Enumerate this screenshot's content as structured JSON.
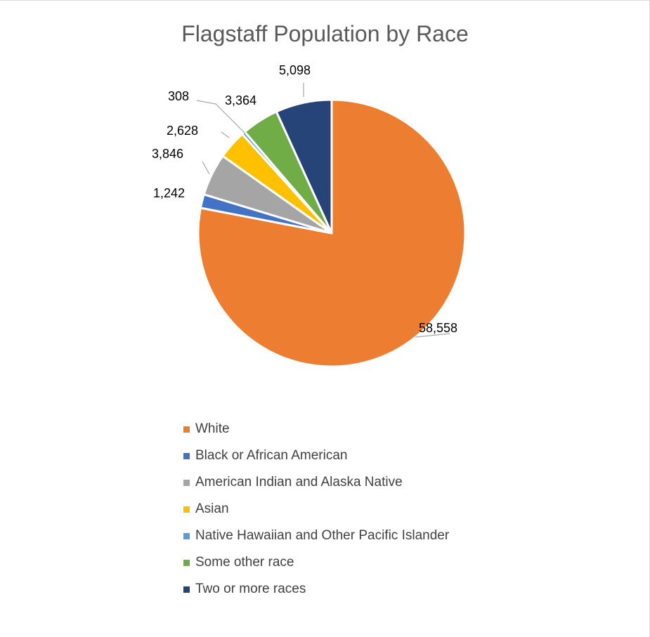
{
  "chart_data": {
    "type": "pie",
    "title": "Flagstaff Population by Race",
    "slices": [
      {
        "label": "White",
        "value": 58558,
        "value_label": "58,558",
        "color": "#ED7D31"
      },
      {
        "label": "Black or African American",
        "value": 1242,
        "value_label": "1,242",
        "color": "#4472C4"
      },
      {
        "label": "American Indian and Alaska Native",
        "value": 3846,
        "value_label": "3,846",
        "color": "#A5A5A5"
      },
      {
        "label": "Asian",
        "value": 2628,
        "value_label": "2,628",
        "color": "#FFC000"
      },
      {
        "label": "Native Hawaiian and Other Pacific Islander",
        "value": 308,
        "value_label": "308",
        "color": "#5B9BD5"
      },
      {
        "label": "Some other race",
        "value": 3364,
        "value_label": "3,364",
        "color": "#70AD47"
      },
      {
        "label": "Two or more races",
        "value": 5098,
        "value_label": "5,098",
        "color": "#264478"
      }
    ],
    "legend_position": "bottom"
  }
}
